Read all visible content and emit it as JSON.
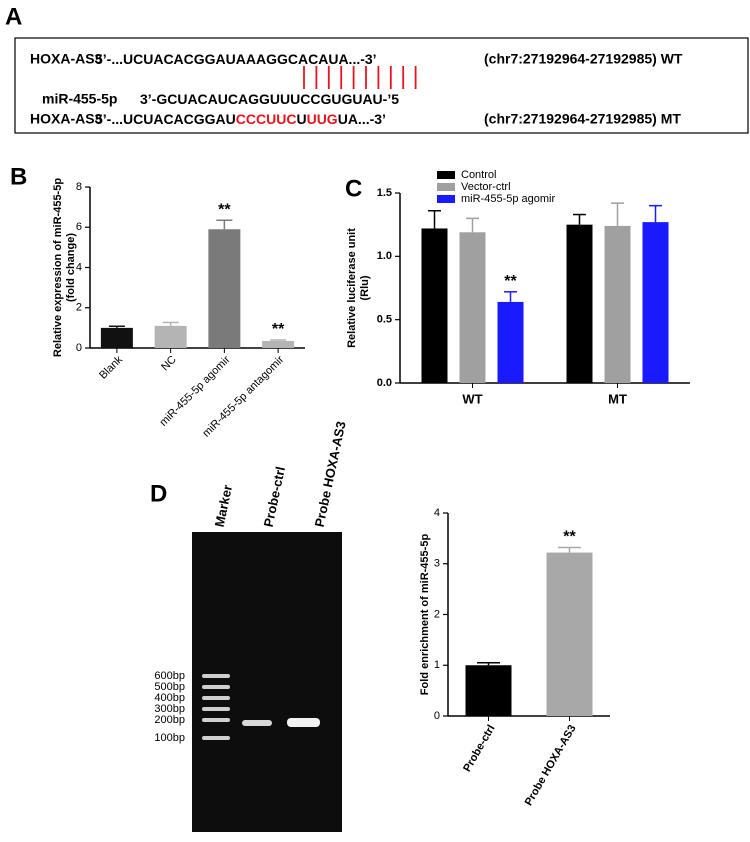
{
  "panel_labels": [
    "A",
    "B",
    "C",
    "D"
  ],
  "sequences": {
    "highlight_color": "#e8141c",
    "rows": [
      {
        "name": "HOXA-AS3",
        "segments": [
          {
            "text": "5’-...UCUACACGGAUAAAGGCACAUA...-3’"
          }
        ],
        "location": "(chr7:27192964-27192985) WT"
      },
      {
        "name": "miR-455-5p",
        "segments": [
          {
            "text": "3’-GCUACAUCAGGUUUCCGUGUAU-’5"
          }
        ]
      },
      {
        "name": "HOXA-AS3",
        "segments": [
          {
            "text": "5’-...UCUACACGGAU"
          },
          {
            "text": "CCCUUC",
            "highlight": true
          },
          {
            "text": "U"
          },
          {
            "text": "UUG",
            "highlight": true
          },
          {
            "text": "UA...-3’"
          }
        ],
        "location": "(chr7:27192964-27192985) MT"
      }
    ]
  },
  "chart_data": [
    {
      "type": "bar",
      "ylabel": [
        "Relative expression of miR-455-5p",
        "(fold change)"
      ],
      "categories": [
        "Blank",
        "NC",
        "miR-455-5p agomir",
        "miR-455-5p antagomir"
      ],
      "series": [
        {
          "colors": [
            "#111111",
            "#b4b4b4",
            "#7a7a7a",
            "#b4b4b4"
          ],
          "values": [
            1.0,
            1.1,
            5.9,
            0.35
          ],
          "errors": [
            0.08,
            0.17,
            0.45,
            0.05
          ],
          "significance": [
            null,
            null,
            "**",
            "**"
          ]
        }
      ],
      "ylim": [
        0,
        8
      ],
      "yticks": [
        0,
        2,
        4,
        6,
        8
      ]
    },
    {
      "type": "bar",
      "ylabel": [
        "Relative luciferase unit",
        "(Rlu)"
      ],
      "categories": [
        "WT",
        "MT"
      ],
      "series": [
        {
          "name": "Control",
          "color": "#000000",
          "values": [
            1.22,
            1.25
          ],
          "errors": [
            0.14,
            0.08
          ],
          "significance": [
            null,
            null
          ]
        },
        {
          "name": "Vector-ctrl",
          "color": "#a0a0a0",
          "values": [
            1.19,
            1.24
          ],
          "errors": [
            0.11,
            0.18
          ],
          "significance": [
            null,
            null
          ]
        },
        {
          "name": "miR-455-5p agomir",
          "color": "#1a1aff",
          "values": [
            0.64,
            1.27
          ],
          "errors": [
            0.08,
            0.13
          ],
          "significance": [
            "**",
            null
          ]
        }
      ],
      "ylim": [
        0,
        1.5
      ],
      "yticks": [
        {
          "value": 0,
          "label": "0.0"
        },
        {
          "value": 0.5,
          "label": "0.5"
        },
        {
          "value": 1,
          "label": "1.0"
        },
        {
          "value": 1.5,
          "label": "1.5"
        }
      ],
      "legend": "top-left"
    },
    {
      "type": "bar",
      "ylabel": [
        "Fold enrichment of miR-455-5p"
      ],
      "categories": [
        "Probe-ctrl",
        "Probe HOXA-AS3"
      ],
      "series": [
        {
          "colors": [
            "#000000",
            "#a8a8a8"
          ],
          "values": [
            1.0,
            3.22
          ],
          "errors": [
            0.05,
            0.1
          ],
          "significance": [
            null,
            "**"
          ]
        }
      ],
      "ylim": [
        0,
        4
      ],
      "yticks": [
        0,
        1,
        2,
        3,
        4
      ]
    }
  ],
  "gel": {
    "lanes": [
      "Marker",
      "Probe-ctrl",
      "Probe HOXA-AS3"
    ],
    "ladder": [
      "600bp",
      "500bp",
      "400bp",
      "300bp",
      "200bp",
      "100bp"
    ]
  }
}
